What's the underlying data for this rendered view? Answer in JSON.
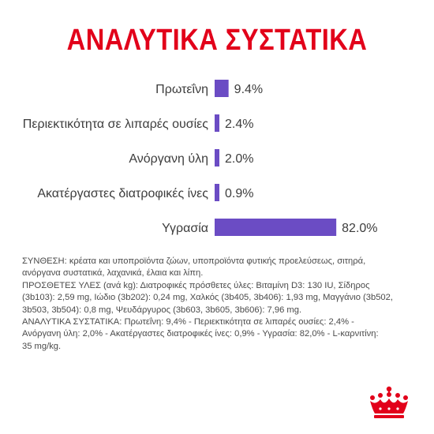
{
  "title": "ΑΝΑΛΥΤΙΚΑ ΣΥΣΤΑΤΙΚΑ",
  "colors": {
    "title": "#e2001a",
    "bar": "#6b4cc4",
    "text": "#3d3d3d",
    "logo": "#e2001a"
  },
  "chart_data": {
    "type": "bar",
    "orientation": "horizontal",
    "categories": [
      "Πρωτεΐνη",
      "Περιεκτικότητα σε λιπαρές ουσίες",
      "Ανόργανη ύλη",
      "Ακατέργαστες διατροφικές ίνες",
      "Υγρασία"
    ],
    "values": [
      9.4,
      2.4,
      2.0,
      0.9,
      82.0
    ],
    "value_labels": [
      "9.4%",
      "2.4%",
      "2.0%",
      "0.9%",
      "82.0%"
    ],
    "xlim": [
      0,
      100
    ],
    "grid": false,
    "legend": "none"
  },
  "composition": {
    "lines": [
      "ΣΥΝΘΕΣΗ: κρέατα και υποπροϊόντα ζώων, υποπροϊόντα φυτικής προελεύσεως, σιτηρά,",
      "ανόργανα συστατικά, λαχανικά, έλαια και λίπη.",
      "ΠΡΟΣΘΕΤΕΣ ΥΛΕΣ (ανά kg): Διατροφικές πρόσθετες ύλες: Βιταμίνη D3: 130 IU, Σίδηρος",
      "(3b103): 2,59 mg, Ιώδιο (3b202): 0,24 mg, Χαλκός (3b405, 3b406): 1,93 mg, Μαγγάνιο (3b502,",
      "3b503, 3b504): 0,8 mg, Ψευδάργυρος (3b603, 3b605, 3b606): 7,96 mg.",
      "ΑΝΑΛΥΤΙΚΑ ΣΥΣΤΑΤΙΚΑ: Πρωτεΐνη: 9,4% - Περιεκτικότητα σε λιπαρές ουσίες: 2,4% -",
      "Ανόργανη ύλη: 2,0% - Ακατέργαστες διατροφικές ίνες: 0,9% - Υγρασία: 82,0% - L-καρνιτίνη:",
      "35 mg/kg."
    ]
  },
  "logo": {
    "icon": "crown-icon"
  }
}
